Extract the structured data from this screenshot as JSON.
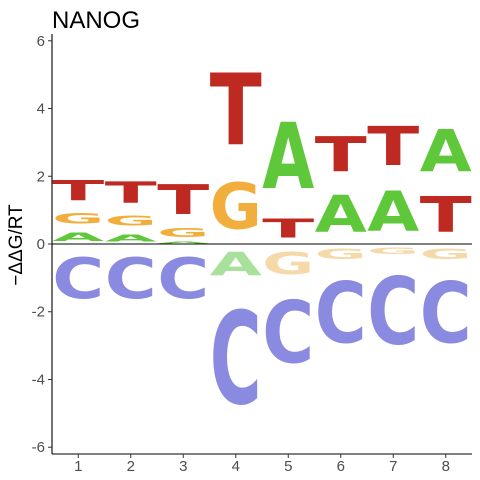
{
  "chart_data": {
    "type": "sequence_logo",
    "title": "NANOG",
    "xlabel": "",
    "ylabel": "−ΔΔG/RT",
    "xlim": [
      0.5,
      8.5
    ],
    "ylim": [
      -6.2,
      6.2
    ],
    "x_ticks": [
      "1",
      "2",
      "3",
      "4",
      "5",
      "6",
      "7",
      "8"
    ],
    "y_ticks": [
      -6,
      -4,
      -2,
      0,
      2,
      4,
      6
    ],
    "zero_line": true,
    "grid": false,
    "colors": {
      "A": "#5ec83a",
      "C": "#8a8ae0",
      "G": "#f2ae3c",
      "T": "#be2a22",
      "A_faded": "#a9e09b",
      "G_faded": "#f5d9a8"
    },
    "positions": [
      {
        "position": 1,
        "letters": [
          {
            "base": "A",
            "from": 0.0,
            "to": 0.4
          },
          {
            "base": "G",
            "from": 0.5,
            "to": 1.0
          },
          {
            "base": "T",
            "from": 1.1,
            "to": 2.05
          },
          {
            "base": "C",
            "from": -2.0,
            "to": -0.05
          }
        ]
      },
      {
        "position": 2,
        "letters": [
          {
            "base": "A",
            "from": 0.0,
            "to": 0.35
          },
          {
            "base": "G",
            "from": 0.45,
            "to": 0.9
          },
          {
            "base": "T",
            "from": 1.0,
            "to": 2.0
          },
          {
            "base": "C",
            "from": -2.0,
            "to": -0.05
          }
        ]
      },
      {
        "position": 3,
        "letters": [
          {
            "base": "A",
            "from": 0.0,
            "to": 0.1
          },
          {
            "base": "G",
            "from": 0.12,
            "to": 0.55
          },
          {
            "base": "T",
            "from": 0.6,
            "to": 2.0
          },
          {
            "base": "C",
            "from": -2.0,
            "to": -0.05
          }
        ]
      },
      {
        "position": 4,
        "letters": [
          {
            "base": "G",
            "from": 0.0,
            "to": 2.2
          },
          {
            "base": "T",
            "from": 2.25,
            "to": 5.65
          },
          {
            "base": "A",
            "from": -1.15,
            "to": -0.05,
            "faded": true
          },
          {
            "base": "C",
            "from": -5.6,
            "to": -1.2
          }
        ]
      },
      {
        "position": 5,
        "letters": [
          {
            "base": "T",
            "from": 0.0,
            "to": 0.9
          },
          {
            "base": "A",
            "from": 1.0,
            "to": 4.15
          },
          {
            "base": "G",
            "from": -1.1,
            "to": -0.05,
            "faded": true
          },
          {
            "base": "C",
            "from": -4.1,
            "to": -1.15
          }
        ]
      },
      {
        "position": 6,
        "letters": [
          {
            "base": "A",
            "from": 0.0,
            "to": 1.75
          },
          {
            "base": "T",
            "from": 1.8,
            "to": 3.45
          },
          {
            "base": "G",
            "from": -0.55,
            "to": -0.05,
            "faded": true
          },
          {
            "base": "C",
            "from": -3.5,
            "to": -0.6
          }
        ]
      },
      {
        "position": 7,
        "letters": [
          {
            "base": "A",
            "from": 0.0,
            "to": 1.9
          },
          {
            "base": "T",
            "from": 1.95,
            "to": 3.8
          },
          {
            "base": "G",
            "from": -0.35,
            "to": -0.05,
            "faded": true
          },
          {
            "base": "C",
            "from": -3.6,
            "to": -0.4
          }
        ]
      },
      {
        "position": 8,
        "letters": [
          {
            "base": "T",
            "from": 0.0,
            "to": 1.7
          },
          {
            "base": "A",
            "from": 1.75,
            "to": 3.75
          },
          {
            "base": "G",
            "from": -0.55,
            "to": -0.05,
            "faded": true
          },
          {
            "base": "C",
            "from": -3.5,
            "to": -0.6
          }
        ]
      }
    ]
  }
}
